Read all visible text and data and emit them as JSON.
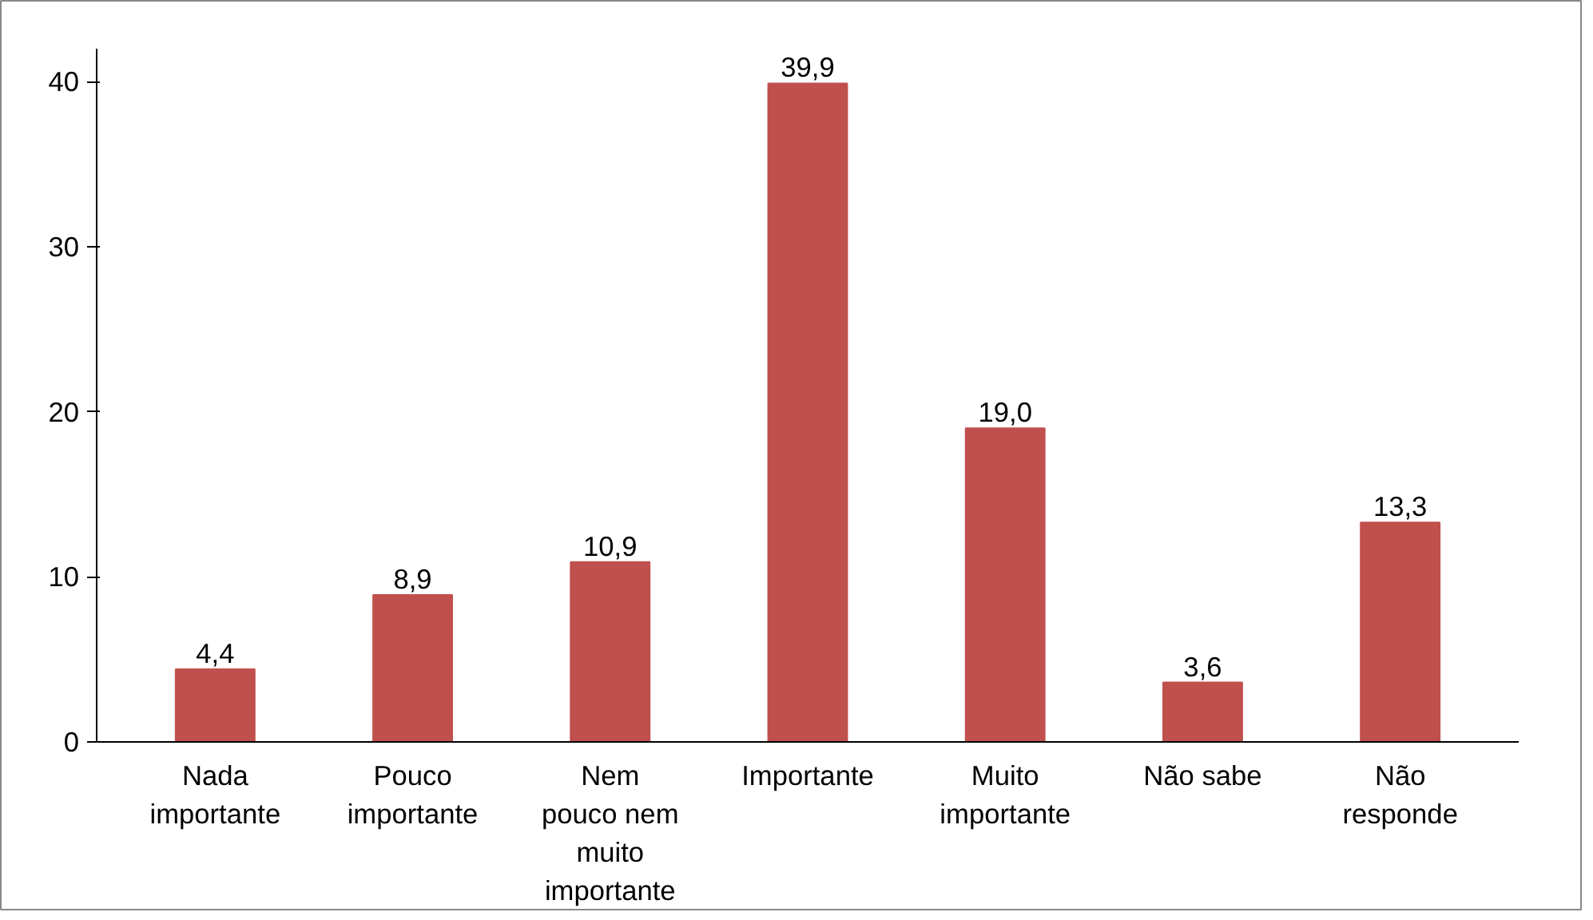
{
  "chart_data": {
    "type": "bar",
    "categories": [
      "Nada\nimportante",
      "Pouco\nimportante",
      "Nem\npouco nem\nmuito\nimportante",
      "Importante",
      "Muito\nimportante",
      "Não sabe",
      "Não\nresponde"
    ],
    "values": [
      4.4,
      8.9,
      10.9,
      39.9,
      19.0,
      3.6,
      13.3
    ],
    "value_labels": [
      "4,4",
      "8,9",
      "10,9",
      "39,9",
      "19,0",
      "3,6",
      "13,3"
    ],
    "color": "#c0504d",
    "ylim": [
      0,
      42
    ],
    "yticks": [
      0,
      10,
      20,
      30,
      40
    ],
    "grid": false
  }
}
